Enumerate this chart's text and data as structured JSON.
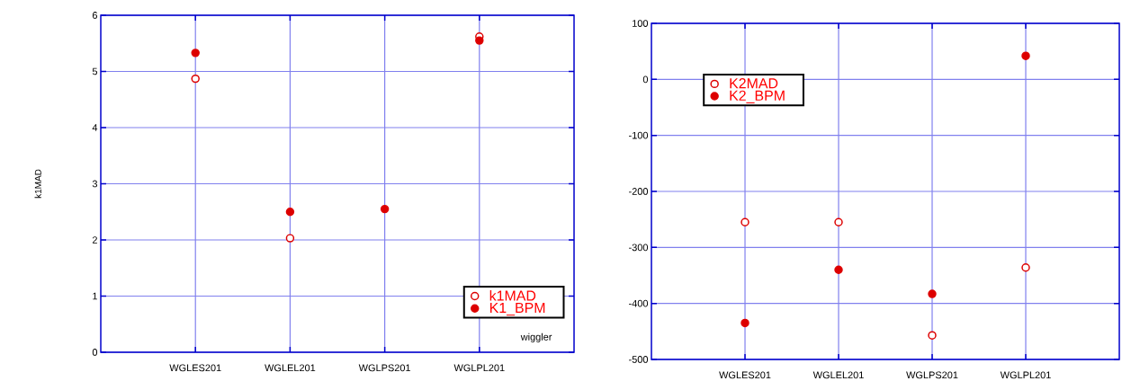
{
  "chart_data": [
    {
      "type": "scatter",
      "ylabel": "k1MAD",
      "categories": [
        "WGLES201",
        "WGLEL201",
        "WGLPS201",
        "WGLPL201"
      ],
      "ylim": [
        0,
        6
      ],
      "yticks": [
        0,
        1,
        2,
        3,
        4,
        5,
        6
      ],
      "grid": true,
      "legend": "bottom right",
      "marker": "circle",
      "annotations": [
        "wiggler"
      ],
      "series": [
        {
          "name": "k1MAD",
          "color": "#dd0000",
          "values": [
            4.87,
            2.03,
            null,
            5.62
          ]
        },
        {
          "name": "K1_BPM",
          "color": "#dd0000",
          "values": [
            5.33,
            2.5,
            2.55,
            5.55
          ]
        }
      ]
    },
    {
      "type": "scatter",
      "categories": [
        "WGLES201",
        "WGLEL201",
        "WGLPS201",
        "WGLPL201"
      ],
      "ylim": [
        -500,
        100
      ],
      "yticks": [
        -500,
        -400,
        -300,
        -200,
        -100,
        0,
        100
      ],
      "grid": true,
      "legend": "top left",
      "marker": "circle",
      "series": [
        {
          "name": "K2MAD",
          "color": "#dd0000",
          "values": [
            -255,
            -255,
            -457,
            -336
          ]
        },
        {
          "name": "K2_BPM",
          "color": "#dd0000",
          "values": [
            -435,
            -340,
            -383,
            42
          ]
        }
      ]
    }
  ]
}
